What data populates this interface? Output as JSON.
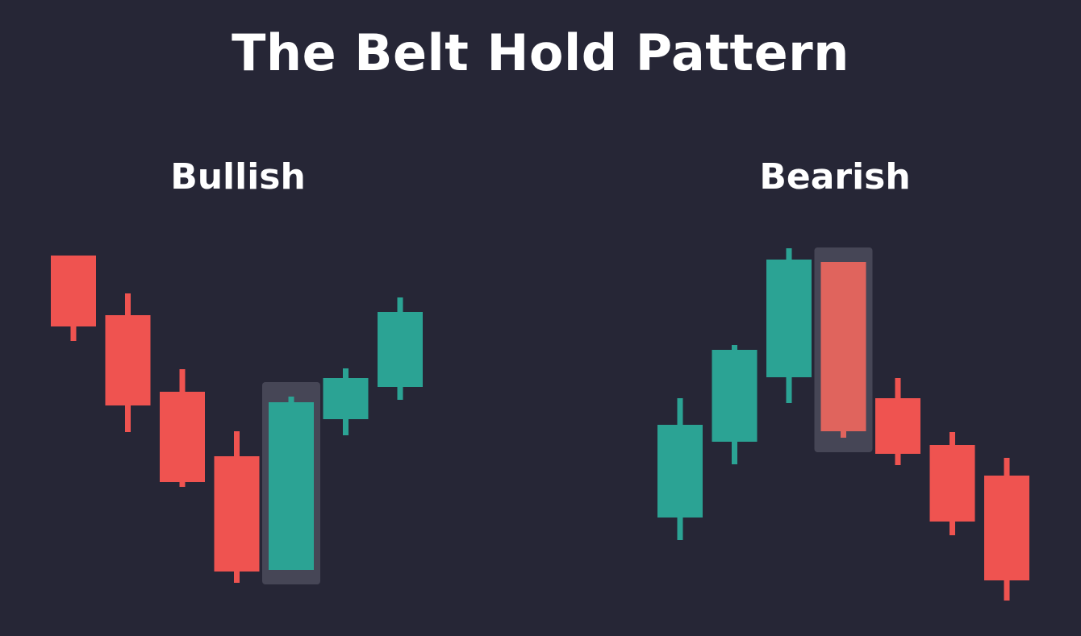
{
  "title": "The Belt Hold Pattern",
  "colors": {
    "background": "#262636",
    "bullish": "#2ba394",
    "bearish": "#ef5350",
    "highlight_box": "#4a4a5a",
    "highlighted_bearish": "#e0645d"
  },
  "chart_data": [
    {
      "type": "candlestick",
      "title": "Bullish",
      "candles": [
        {
          "direction": "bearish",
          "open": 472,
          "close": 384,
          "high": 472,
          "low": 366
        },
        {
          "direction": "bearish",
          "open": 398,
          "close": 286,
          "high": 425,
          "low": 253
        },
        {
          "direction": "bearish",
          "open": 303,
          "close": 191,
          "high": 331,
          "low": 185
        },
        {
          "direction": "bearish",
          "open": 223,
          "close": 80,
          "high": 254,
          "low": 66
        },
        {
          "direction": "bullish",
          "open": 82,
          "close": 290,
          "high": 297,
          "low": 82,
          "highlighted": true
        },
        {
          "direction": "bullish",
          "open": 269,
          "close": 320,
          "high": 332,
          "low": 249
        },
        {
          "direction": "bullish",
          "open": 309,
          "close": 402,
          "high": 420,
          "low": 293
        }
      ]
    },
    {
      "type": "candlestick",
      "title": "Bearish",
      "candles": [
        {
          "direction": "bullish",
          "open": 147,
          "close": 262,
          "high": 295,
          "low": 119
        },
        {
          "direction": "bullish",
          "open": 241,
          "close": 355,
          "high": 361,
          "low": 213
        },
        {
          "direction": "bullish",
          "open": 321,
          "close": 467,
          "high": 481,
          "low": 289
        },
        {
          "direction": "bearish",
          "open": 464,
          "close": 254,
          "high": 464,
          "low": 246,
          "highlighted": true
        },
        {
          "direction": "bearish",
          "open": 295,
          "close": 226,
          "high": 320,
          "low": 212
        },
        {
          "direction": "bearish",
          "open": 237,
          "close": 142,
          "high": 253,
          "low": 125
        },
        {
          "direction": "bearish",
          "open": 199,
          "close": 69,
          "high": 221,
          "low": 44
        }
      ]
    }
  ]
}
